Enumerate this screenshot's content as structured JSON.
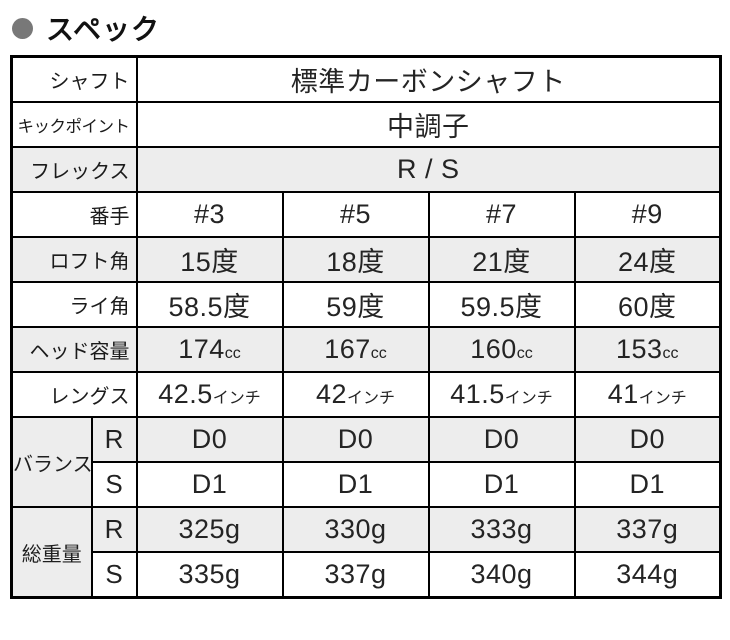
{
  "section": {
    "title": "スペック"
  },
  "colors": {
    "bullet": "#787878",
    "row_alt_bg": "#ededed",
    "border": "#000000"
  },
  "spec": {
    "shaft": {
      "label": "シャフト",
      "value": "標準カーボンシャフト"
    },
    "kick_point": {
      "label": "キックポイント",
      "value": "中調子"
    },
    "flex": {
      "label": "フレックス",
      "value": "R / S"
    },
    "club_number": {
      "label": "番手",
      "values": [
        "#3",
        "#5",
        "#7",
        "#9"
      ]
    },
    "loft_angle": {
      "label": "ロフト角",
      "values": [
        "15度",
        "18度",
        "21度",
        "24度"
      ]
    },
    "lie_angle": {
      "label": "ライ角",
      "values": [
        "58.5度",
        "59度",
        "59.5度",
        "60度"
      ]
    },
    "head_volume": {
      "label": "ヘッド容量",
      "unit": "cc",
      "numbers": [
        "174",
        "167",
        "160",
        "153"
      ]
    },
    "length": {
      "label": "レングス",
      "unit": "インチ",
      "numbers": [
        "42.5",
        "42",
        "41.5",
        "41"
      ]
    },
    "balance": {
      "label": "バランス",
      "rows": [
        {
          "flex": "R",
          "values": [
            "D0",
            "D0",
            "D0",
            "D0"
          ]
        },
        {
          "flex": "S",
          "values": [
            "D1",
            "D1",
            "D1",
            "D1"
          ]
        }
      ]
    },
    "total_weight": {
      "label": "総重量",
      "rows": [
        {
          "flex": "R",
          "values": [
            "325g",
            "330g",
            "333g",
            "337g"
          ]
        },
        {
          "flex": "S",
          "values": [
            "335g",
            "337g",
            "340g",
            "344g"
          ]
        }
      ]
    }
  }
}
